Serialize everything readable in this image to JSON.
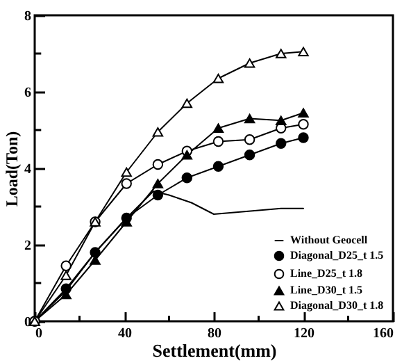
{
  "chart_data": {
    "type": "line",
    "xlabel": "Settlement(mm)",
    "ylabel": "Load(Ton)",
    "xlim": [
      0,
      160
    ],
    "ylim": [
      0,
      8
    ],
    "xticks": [
      0,
      {
        "value": 20,
        "label": null
      },
      40,
      {
        "value": 60,
        "label": null
      },
      80,
      {
        "value": 100,
        "label": null
      },
      120,
      {
        "value": 140,
        "label": null
      },
      160
    ],
    "yticks": [
      0,
      {
        "value": 1,
        "label": null
      },
      2,
      {
        "value": 3,
        "label": null
      },
      4,
      {
        "value": 5,
        "label": null
      },
      6,
      {
        "value": 7,
        "label": null
      },
      8
    ],
    "grid": false,
    "legend": "bottom right",
    "line_style": "solid",
    "series": [
      {
        "name": "Without Geocell",
        "color": "#000000",
        "marker": "none",
        "x": [
          0,
          14,
          27,
          41,
          53,
          60,
          70,
          80,
          90,
          100,
          110,
          120
        ],
        "values": [
          0,
          0.8,
          1.8,
          2.7,
          3.4,
          3.3,
          3.1,
          2.8,
          2.85,
          2.9,
          2.95,
          2.95
        ]
      },
      {
        "name": "Diagonal_D25_t 1.5",
        "color": "#000000",
        "marker": "circle",
        "x": [
          0,
          14,
          27,
          41,
          55,
          68,
          82,
          96,
          110,
          120
        ],
        "values": [
          0,
          0.85,
          1.8,
          2.7,
          3.3,
          3.75,
          4.05,
          4.35,
          4.65,
          4.8
        ]
      },
      {
        "name": "Line_D25_t 1.8",
        "color": "#000000",
        "marker": "circle-open",
        "x": [
          0,
          14,
          27,
          41,
          55,
          68,
          82,
          96,
          110,
          120
        ],
        "values": [
          0,
          1.45,
          2.6,
          3.6,
          4.1,
          4.45,
          4.7,
          4.75,
          5.05,
          5.15
        ]
      },
      {
        "name": "Line_D30_t 1.5",
        "color": "#000000",
        "marker": "triangle",
        "x": [
          0,
          14,
          27,
          41,
          55,
          68,
          82,
          96,
          110,
          120
        ],
        "values": [
          0,
          0.7,
          1.6,
          2.6,
          3.6,
          4.35,
          5.05,
          5.3,
          5.25,
          5.45
        ]
      },
      {
        "name": "Diagonal_D30_t 1.8",
        "color": "#000000",
        "marker": "triangle-open",
        "x": [
          0,
          14,
          27,
          41,
          55,
          68,
          82,
          96,
          110,
          120
        ],
        "values": [
          0,
          1.2,
          2.6,
          3.9,
          4.95,
          5.7,
          6.35,
          6.75,
          7.0,
          7.05
        ]
      }
    ]
  }
}
